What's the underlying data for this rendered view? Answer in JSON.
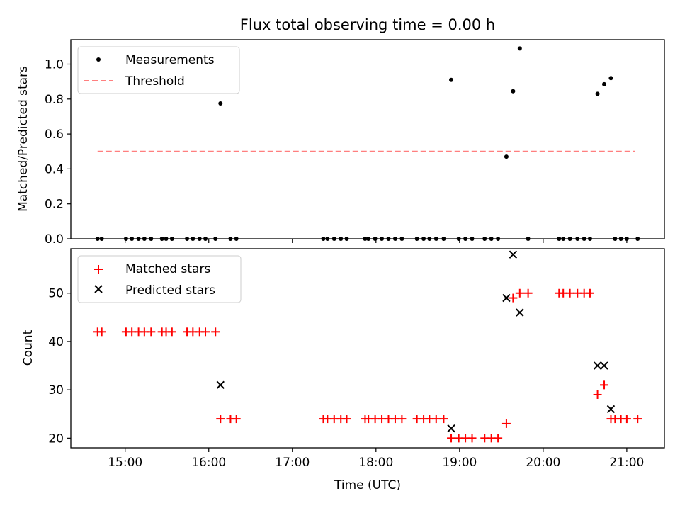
{
  "chart_data": [
    {
      "type": "scatter",
      "title": "Flux total observing time = 0.00 h",
      "xlabel": "",
      "ylabel": "Matched/Predicted stars",
      "xlim": [
        14.35,
        21.45
      ],
      "ylim": [
        0,
        1.14
      ],
      "yticks": [
        0.0,
        0.2,
        0.4,
        0.6,
        0.8,
        1.0
      ],
      "ytick_labels": [
        "0.0",
        "0.2",
        "0.4",
        "0.6",
        "0.8",
        "1.0"
      ],
      "legend": {
        "position": "top-left",
        "entries": [
          "Measurements",
          "Threshold"
        ]
      },
      "threshold": {
        "name": "Threshold",
        "value": 0.5,
        "x_range": [
          14.67,
          21.1
        ],
        "color": "#ff7f7f"
      },
      "series": [
        {
          "name": "Measurements",
          "color": "#000000",
          "points": [
            [
              14.67,
              0
            ],
            [
              14.72,
              0
            ],
            [
              15.01,
              0
            ],
            [
              15.08,
              0
            ],
            [
              15.16,
              0
            ],
            [
              15.23,
              0
            ],
            [
              15.31,
              0
            ],
            [
              15.44,
              0
            ],
            [
              15.49,
              0
            ],
            [
              15.56,
              0
            ],
            [
              15.74,
              0
            ],
            [
              15.81,
              0
            ],
            [
              15.89,
              0
            ],
            [
              15.96,
              0
            ],
            [
              16.08,
              0
            ],
            [
              16.14,
              0.775
            ],
            [
              16.26,
              0
            ],
            [
              16.33,
              0
            ],
            [
              17.37,
              0
            ],
            [
              17.42,
              0
            ],
            [
              17.5,
              0
            ],
            [
              17.58,
              0
            ],
            [
              17.65,
              0
            ],
            [
              17.87,
              0
            ],
            [
              17.91,
              0
            ],
            [
              17.99,
              0
            ],
            [
              18.07,
              0
            ],
            [
              18.15,
              0
            ],
            [
              18.23,
              0
            ],
            [
              18.31,
              0
            ],
            [
              18.49,
              0
            ],
            [
              18.57,
              0
            ],
            [
              18.64,
              0
            ],
            [
              18.72,
              0
            ],
            [
              18.81,
              0
            ],
            [
              18.9,
              0.91
            ],
            [
              18.99,
              0
            ],
            [
              19.07,
              0
            ],
            [
              19.15,
              0
            ],
            [
              19.3,
              0
            ],
            [
              19.38,
              0
            ],
            [
              19.46,
              0
            ],
            [
              19.56,
              0.47
            ],
            [
              19.64,
              0.845
            ],
            [
              19.72,
              1.09
            ],
            [
              19.82,
              0
            ],
            [
              20.19,
              0
            ],
            [
              20.24,
              0
            ],
            [
              20.32,
              0
            ],
            [
              20.41,
              0
            ],
            [
              20.49,
              0
            ],
            [
              20.56,
              0
            ],
            [
              20.65,
              0.83
            ],
            [
              20.73,
              0.885
            ],
            [
              20.81,
              0.92
            ],
            [
              20.86,
              0
            ],
            [
              20.93,
              0
            ],
            [
              21.0,
              0
            ],
            [
              21.13,
              0
            ]
          ]
        }
      ]
    },
    {
      "type": "scatter",
      "title": "",
      "xlabel": "Time (UTC)",
      "ylabel": "Count",
      "xlim": [
        14.35,
        21.45
      ],
      "ylim": [
        18,
        59.2
      ],
      "xticks": [
        15,
        16,
        17,
        18,
        19,
        20,
        21
      ],
      "xtick_labels": [
        "15:00",
        "16:00",
        "17:00",
        "18:00",
        "19:00",
        "20:00",
        "21:00"
      ],
      "yticks": [
        20,
        30,
        40,
        50
      ],
      "ytick_labels": [
        "20",
        "30",
        "40",
        "50"
      ],
      "legend": {
        "position": "top-left",
        "entries": [
          "Matched stars",
          "Predicted stars"
        ]
      },
      "series": [
        {
          "name": "Matched stars",
          "marker": "plus",
          "color": "#ff0000",
          "points": [
            [
              14.67,
              42
            ],
            [
              14.72,
              42
            ],
            [
              15.01,
              42
            ],
            [
              15.08,
              42
            ],
            [
              15.16,
              42
            ],
            [
              15.23,
              42
            ],
            [
              15.31,
              42
            ],
            [
              15.44,
              42
            ],
            [
              15.49,
              42
            ],
            [
              15.56,
              42
            ],
            [
              15.74,
              42
            ],
            [
              15.81,
              42
            ],
            [
              15.89,
              42
            ],
            [
              15.96,
              42
            ],
            [
              16.08,
              42
            ],
            [
              16.14,
              24
            ],
            [
              16.26,
              24
            ],
            [
              16.33,
              24
            ],
            [
              17.37,
              24
            ],
            [
              17.42,
              24
            ],
            [
              17.5,
              24
            ],
            [
              17.58,
              24
            ],
            [
              17.65,
              24
            ],
            [
              17.87,
              24
            ],
            [
              17.91,
              24
            ],
            [
              17.99,
              24
            ],
            [
              18.07,
              24
            ],
            [
              18.15,
              24
            ],
            [
              18.23,
              24
            ],
            [
              18.31,
              24
            ],
            [
              18.49,
              24
            ],
            [
              18.57,
              24
            ],
            [
              18.64,
              24
            ],
            [
              18.72,
              24
            ],
            [
              18.81,
              24
            ],
            [
              18.9,
              20
            ],
            [
              18.99,
              20
            ],
            [
              19.07,
              20
            ],
            [
              19.15,
              20
            ],
            [
              19.3,
              20
            ],
            [
              19.38,
              20
            ],
            [
              19.46,
              20
            ],
            [
              19.56,
              23
            ],
            [
              19.64,
              49
            ],
            [
              19.72,
              50
            ],
            [
              19.82,
              50
            ],
            [
              20.19,
              50
            ],
            [
              20.24,
              50
            ],
            [
              20.32,
              50
            ],
            [
              20.41,
              50
            ],
            [
              20.49,
              50
            ],
            [
              20.56,
              50
            ],
            [
              20.65,
              29
            ],
            [
              20.73,
              31
            ],
            [
              20.81,
              24
            ],
            [
              20.86,
              24
            ],
            [
              20.93,
              24
            ],
            [
              21.0,
              24
            ],
            [
              21.13,
              24
            ]
          ]
        },
        {
          "name": "Predicted stars",
          "marker": "x",
          "color": "#000000",
          "points": [
            [
              16.14,
              31
            ],
            [
              18.9,
              22
            ],
            [
              19.56,
              49
            ],
            [
              19.64,
              58
            ],
            [
              19.72,
              46
            ],
            [
              20.65,
              35
            ],
            [
              20.73,
              35
            ],
            [
              20.81,
              26
            ]
          ]
        }
      ]
    }
  ]
}
